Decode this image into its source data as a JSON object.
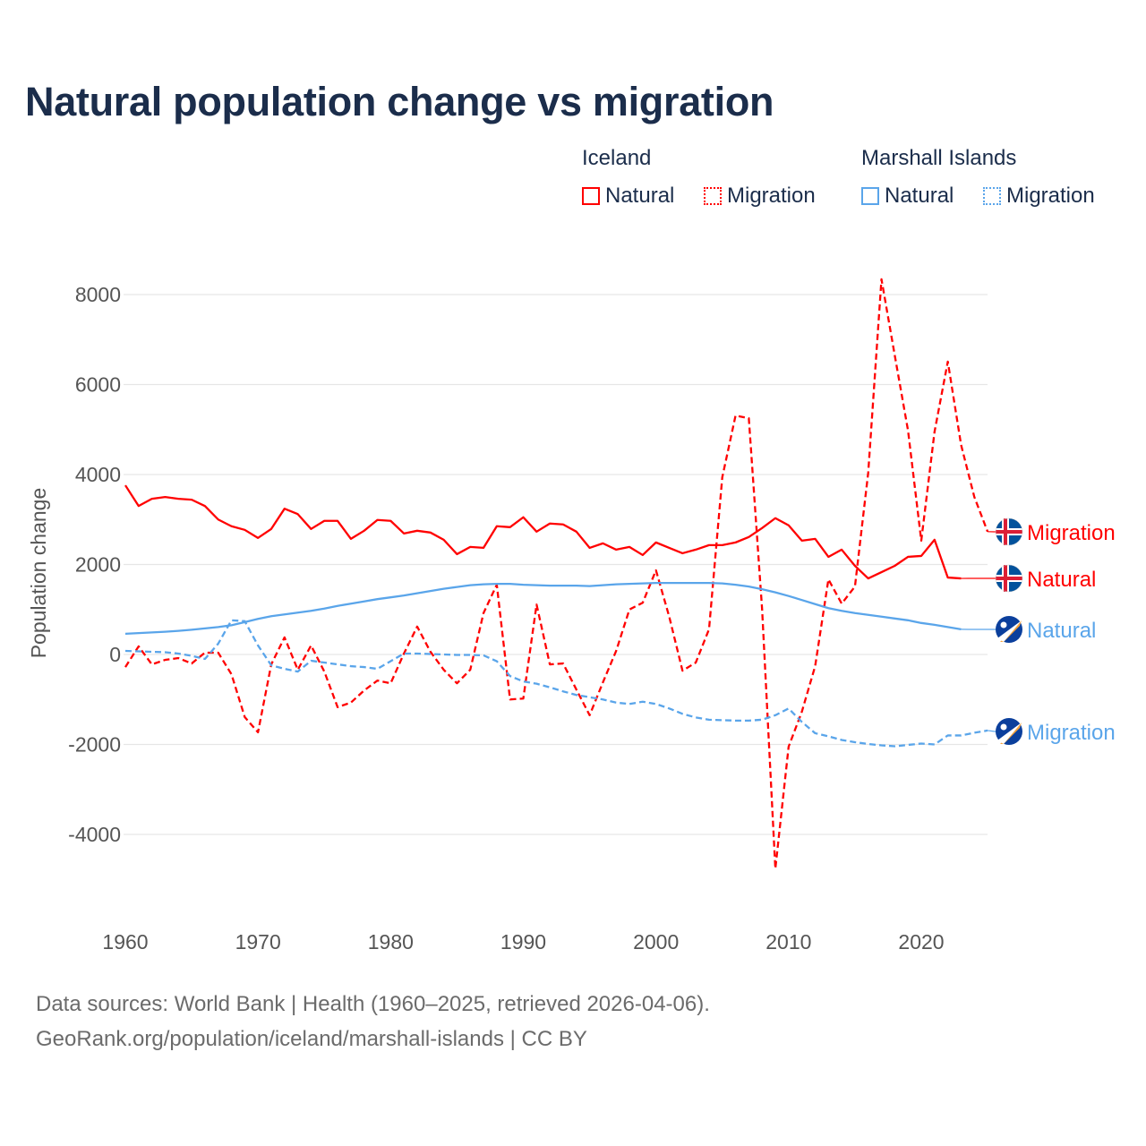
{
  "title": "Natural population change vs migration",
  "legend": {
    "groups": [
      {
        "name": "Iceland",
        "color": "#ff0000",
        "items": [
          "Natural",
          "Migration"
        ]
      },
      {
        "name": "Marshall Islands",
        "color": "#5aa5ea",
        "items": [
          "Natural",
          "Migration"
        ]
      }
    ]
  },
  "footer": {
    "line1": "Data sources: World Bank | Health (1960–2025, retrieved 2026-04-06).",
    "line2": "GeoRank.org/population/iceland/marshall-islands | CC BY"
  },
  "chart_data": {
    "type": "line",
    "title": "Natural population change vs migration",
    "xlabel": "",
    "ylabel": "Population change",
    "xlim": [
      1960,
      2025
    ],
    "ylim": [
      -5000,
      8500
    ],
    "yticks": [
      -4000,
      -2000,
      0,
      2000,
      4000,
      6000,
      8000
    ],
    "xticks": [
      1960,
      1970,
      1980,
      1990,
      2000,
      2010,
      2020
    ],
    "grid": true,
    "legend_placement": "top-right",
    "series": [
      {
        "name": "Iceland Natural",
        "label": "Natural",
        "country": "Iceland",
        "flag": "iceland-flag",
        "color": "#ff0000",
        "dash": false,
        "start": 1960,
        "values": [
          3760,
          3300,
          3460,
          3500,
          3460,
          3440,
          3300,
          3000,
          2850,
          2770,
          2590,
          2790,
          3240,
          3120,
          2790,
          2970,
          2970,
          2570,
          2750,
          2990,
          2970,
          2690,
          2750,
          2710,
          2550,
          2230,
          2390,
          2370,
          2850,
          2830,
          3050,
          2730,
          2910,
          2890,
          2730,
          2370,
          2470,
          2330,
          2390,
          2210,
          2490,
          2370,
          2250,
          2330,
          2430,
          2430,
          2490,
          2610,
          2810,
          3030,
          2870,
          2530,
          2570,
          2170,
          2330,
          1970,
          1690,
          1830,
          1970,
          2170,
          2190,
          2550,
          1710,
          1690
        ]
      },
      {
        "name": "Iceland Migration",
        "label": "Migration",
        "country": "Iceland",
        "flag": "iceland-flag",
        "color": "#ff0000",
        "dash": true,
        "start": 1960,
        "values": [
          -280,
          180,
          -220,
          -120,
          -80,
          -200,
          40,
          40,
          -440,
          -1390,
          -1730,
          -220,
          380,
          -340,
          200,
          -380,
          -1170,
          -1070,
          -800,
          -580,
          -640,
          20,
          620,
          60,
          -340,
          -640,
          -340,
          920,
          1550,
          -1000,
          -980,
          1110,
          -220,
          -200,
          -780,
          -1350,
          -620,
          80,
          1000,
          1150,
          1870,
          840,
          -360,
          -180,
          560,
          3940,
          5310,
          5250,
          1010,
          -4760,
          -2050,
          -1270,
          -260,
          1670,
          1130,
          1510,
          4040,
          8340,
          6650,
          4980,
          2530,
          4950,
          6510,
          4660,
          3500,
          2730
        ]
      },
      {
        "name": "Marshall Islands Natural",
        "label": "Natural",
        "country": "Marshall Islands",
        "flag": "marshall-islands-flag",
        "color": "#5aa5ea",
        "dash": false,
        "start": 1960,
        "values": [
          460,
          475,
          490,
          505,
          525,
          550,
          580,
          610,
          650,
          720,
          790,
          850,
          890,
          930,
          970,
          1020,
          1080,
          1130,
          1180,
          1230,
          1270,
          1310,
          1360,
          1410,
          1460,
          1500,
          1540,
          1560,
          1570,
          1570,
          1550,
          1540,
          1530,
          1530,
          1530,
          1520,
          1540,
          1560,
          1570,
          1580,
          1590,
          1590,
          1590,
          1590,
          1590,
          1580,
          1550,
          1510,
          1450,
          1380,
          1300,
          1210,
          1120,
          1030,
          970,
          920,
          880,
          840,
          800,
          760,
          700,
          660,
          610,
          560
        ]
      },
      {
        "name": "Marshall Islands Migration",
        "label": "Migration",
        "country": "Marshall Islands",
        "flag": "marshall-islands-flag",
        "color": "#5aa5ea",
        "dash": true,
        "start": 1960,
        "values": [
          80,
          70,
          60,
          50,
          20,
          -30,
          -100,
          240,
          760,
          740,
          200,
          -240,
          -320,
          -380,
          -140,
          -180,
          -220,
          -260,
          -280,
          -320,
          -150,
          20,
          20,
          10,
          0,
          -10,
          -10,
          -20,
          -150,
          -480,
          -600,
          -650,
          -730,
          -820,
          -900,
          -950,
          -1000,
          -1070,
          -1100,
          -1050,
          -1100,
          -1200,
          -1320,
          -1400,
          -1450,
          -1460,
          -1470,
          -1470,
          -1450,
          -1350,
          -1200,
          -1500,
          -1750,
          -1820,
          -1900,
          -1950,
          -1990,
          -2020,
          -2040,
          -2010,
          -1980,
          -2000,
          -1800,
          -1800,
          -1740,
          -1690
        ]
      }
    ]
  }
}
